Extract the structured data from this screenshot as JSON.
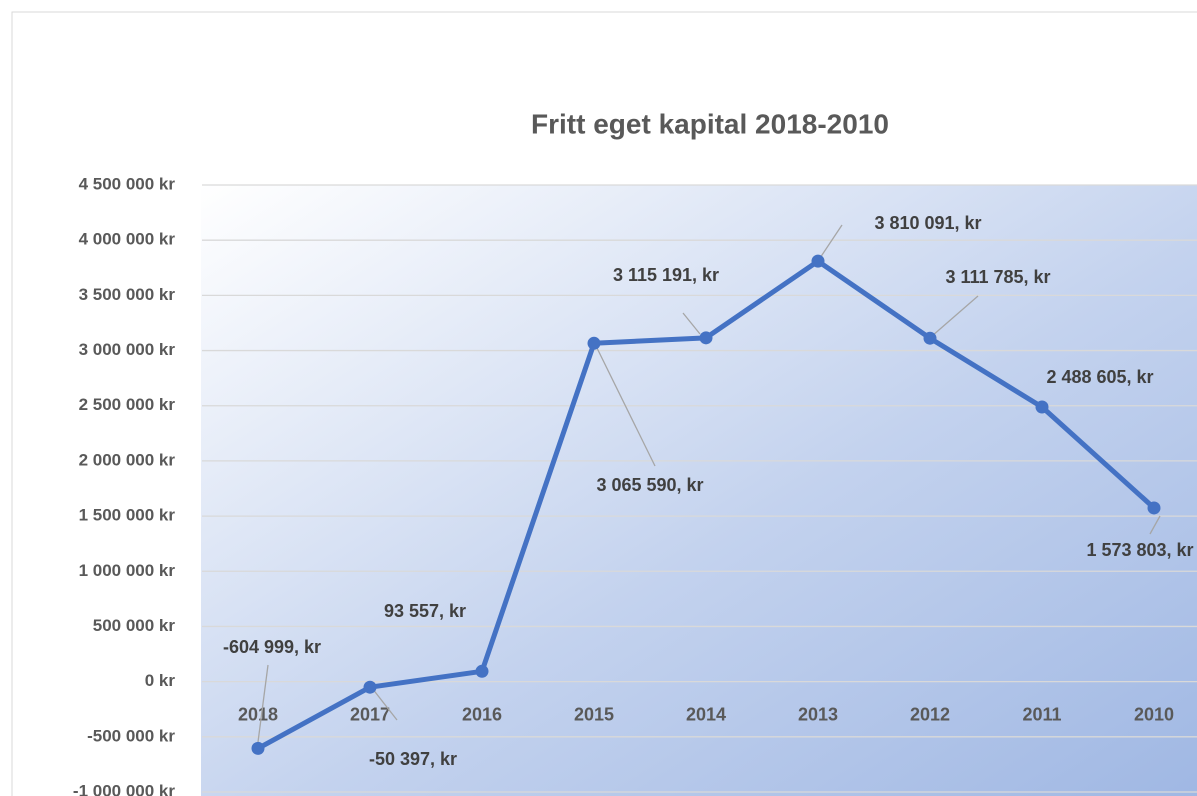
{
  "chart_data": {
    "type": "line",
    "title": "Fritt eget kapital 2018-2010",
    "categories": [
      "2018",
      "2017",
      "2016",
      "2015",
      "2014",
      "2013",
      "2012",
      "2011",
      "2010"
    ],
    "series": [
      {
        "name": "Fritt eget kapital",
        "color": "#4472c4",
        "values": [
          -604999,
          -50397,
          93557,
          3065590,
          3115191,
          3810091,
          3111785,
          2488605,
          1573803
        ],
        "value_labels": [
          "-604 999, kr",
          "-50 397, kr",
          "93 557, kr",
          "3 065 590, kr",
          "3 115 191, kr",
          "3 810 091, kr",
          "3 111 785, kr",
          "2 488 605, kr",
          "1 573 803, kr"
        ]
      }
    ],
    "ylim": [
      -1000000,
      4500000
    ],
    "yticks": [
      {
        "value": -1000000,
        "label": "-1 000 000 kr"
      },
      {
        "value": -500000,
        "label": "-500 000 kr"
      },
      {
        "value": 0,
        "label": "0 kr"
      },
      {
        "value": 500000,
        "label": "500 000 kr"
      },
      {
        "value": 1000000,
        "label": "1 000 000 kr"
      },
      {
        "value": 1500000,
        "label": "1 500 000 kr"
      },
      {
        "value": 2000000,
        "label": "2 000 000 kr"
      },
      {
        "value": 2500000,
        "label": "2 500 000 kr"
      },
      {
        "value": 3000000,
        "label": "3 000 000 kr"
      },
      {
        "value": 3500000,
        "label": "3 500 000 kr"
      },
      {
        "value": 4000000,
        "label": "4 000 000 kr"
      },
      {
        "value": 4500000,
        "label": "4 500 000 kr"
      }
    ],
    "grid": true
  }
}
